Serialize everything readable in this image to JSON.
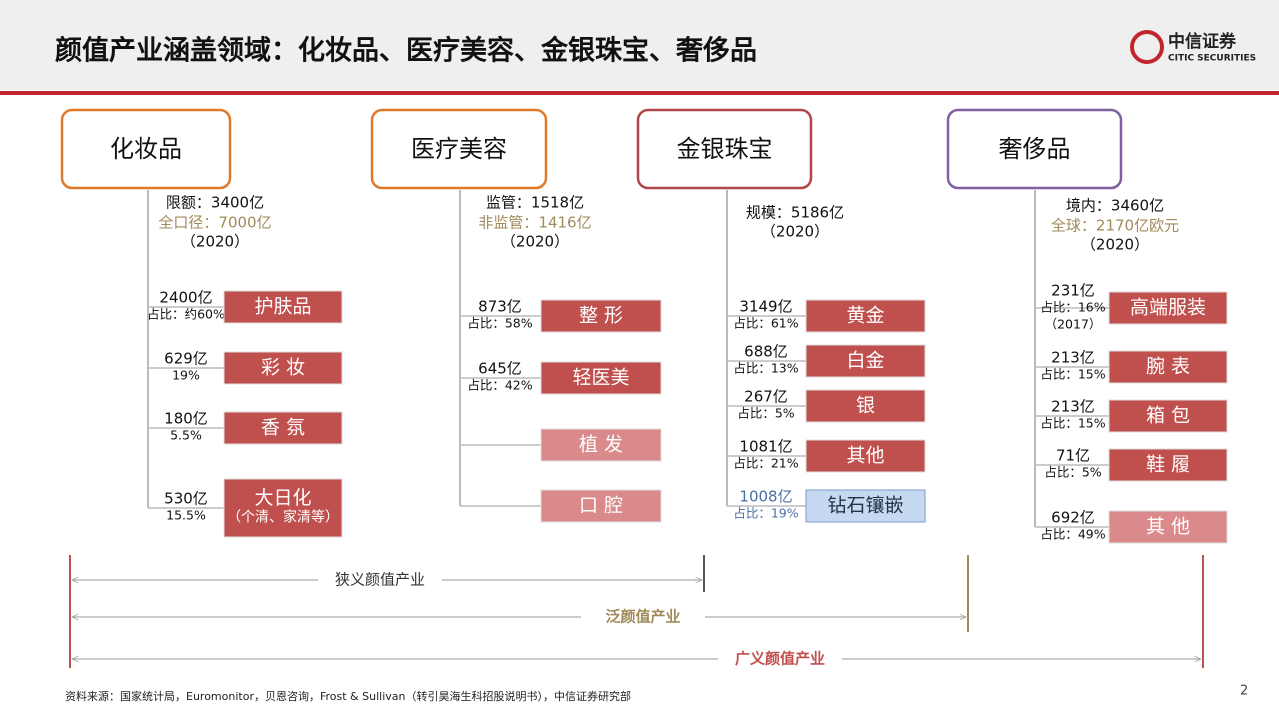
{
  "header": {
    "title": "颜值产业涵盖领域：化妆品、医疗美容、金银珠宝、奢侈品",
    "logo": "中信证券",
    "logo_en": "CITIC SECURITIES"
  },
  "columns": [
    {
      "heading": "化妆品",
      "summary": [
        "限额：3400亿",
        "全口径：7000亿",
        "（2020）"
      ],
      "items": [
        {
          "lines": [
            "2400亿",
            "占比：约60%"
          ],
          "box": [
            "护肤品"
          ]
        },
        {
          "lines": [
            "629亿",
            "19%"
          ],
          "box": [
            "彩 妆"
          ]
        },
        {
          "lines": [
            "180亿",
            "5.5%"
          ],
          "box": [
            "香 氛"
          ]
        },
        {
          "lines": [
            "530亿",
            "15.5%"
          ],
          "box": [
            "大日化",
            "（个清、家清等）"
          ]
        }
      ]
    },
    {
      "heading": "医疗美容",
      "summary": [
        "监管：1518亿",
        "非监管：1416亿",
        "（2020）"
      ],
      "items": [
        {
          "lines": [
            "873亿",
            "占比：58%"
          ],
          "box": [
            "整 形"
          ]
        },
        {
          "lines": [
            "645亿",
            "占比：42%"
          ],
          "box": [
            "轻医美"
          ]
        },
        {
          "lines": [],
          "box": [
            "植 发"
          ]
        },
        {
          "lines": [],
          "box": [
            "口 腔"
          ]
        }
      ]
    },
    {
      "heading": "金银珠宝",
      "summary": [
        "规模：5186亿",
        "（2020）"
      ],
      "items": [
        {
          "lines": [
            "3149亿",
            "占比：61%"
          ],
          "box": [
            "黄金"
          ]
        },
        {
          "lines": [
            "688亿",
            "占比：13%"
          ],
          "box": [
            "白金"
          ]
        },
        {
          "lines": [
            "267亿",
            "占比：5%"
          ],
          "box": [
            "银"
          ]
        },
        {
          "lines": [
            "1081亿",
            "占比：21%"
          ],
          "box": [
            "其他"
          ]
        },
        {
          "lines": [
            "1008亿",
            "占比：19%"
          ],
          "box": [
            "钻石镶嵌"
          ]
        }
      ]
    },
    {
      "heading": "奢侈品",
      "summary": [
        "境内：3460亿",
        "全球：2170亿欧元",
        "（2020）"
      ],
      "items": [
        {
          "lines": [
            "231亿",
            "占比：16%",
            "（2017）"
          ],
          "box": [
            "高端服装"
          ]
        },
        {
          "lines": [
            "213亿",
            "占比：15%"
          ],
          "box": [
            "腕 表"
          ]
        },
        {
          "lines": [
            "213亿",
            "占比：15%"
          ],
          "box": [
            "箱 包"
          ]
        },
        {
          "lines": [
            "71亿",
            "占比：5%"
          ],
          "box": [
            "鞋 履"
          ]
        },
        {
          "lines": [
            "692亿",
            "占比：49%"
          ],
          "box": [
            "其 他"
          ]
        }
      ]
    }
  ],
  "scopes": [
    "狭义颜值产业",
    "泛颜值产业",
    "广义颜值产业"
  ],
  "footer": {
    "source": "资料来源：国家统计局，Euromonitor，贝恩咨询，Frost & Sullivan（转引昊海生科招股说明书），中信证券研究部",
    "page": "2"
  }
}
